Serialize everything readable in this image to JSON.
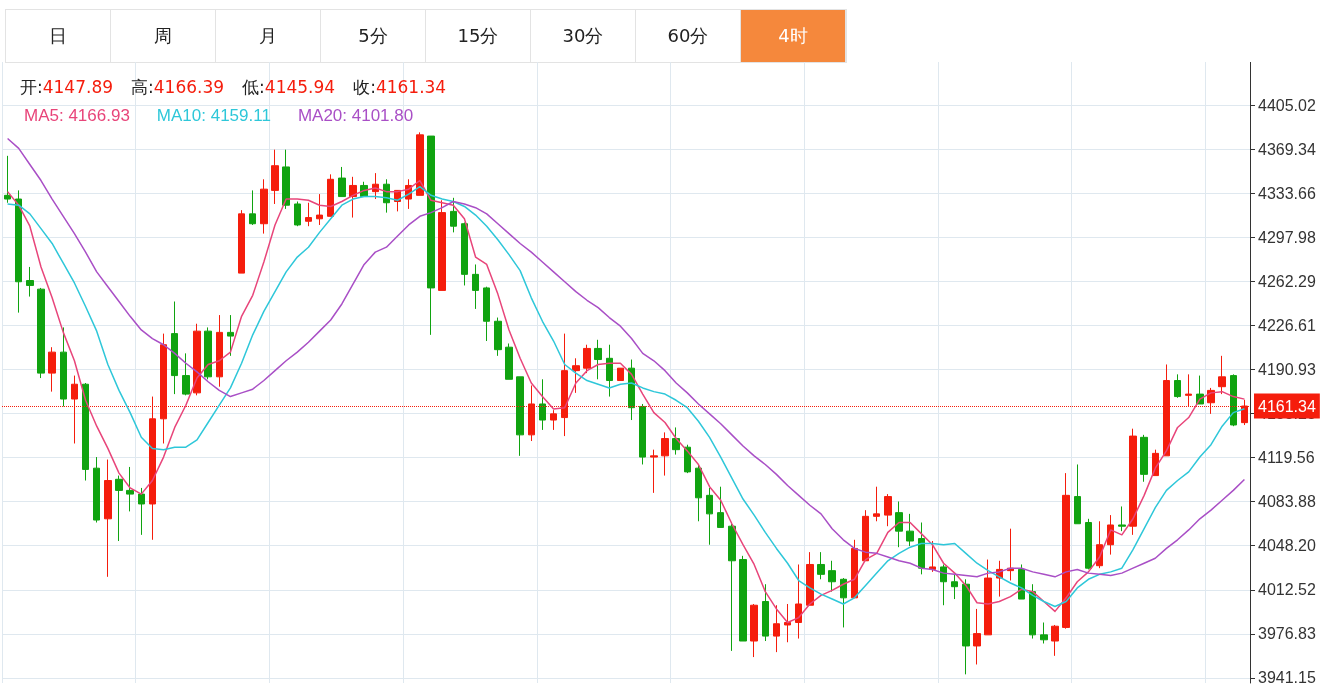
{
  "chart_data": {
    "type": "candlestick",
    "subtitle": "开:4147.89 高:4166.39 低:4145.94 收:4161.34",
    "annotations": [
      "日",
      "周",
      "月",
      "5分",
      "15分",
      "30分",
      "60分",
      "4时"
    ],
    "categories": [
      null,
      null,
      null,
      null,
      null,
      null,
      null,
      null,
      null,
      null,
      null,
      null,
      null,
      null,
      null,
      null,
      null,
      null,
      null,
      null,
      null,
      null,
      null,
      null,
      null,
      null,
      null,
      null,
      null,
      null,
      null,
      null,
      null,
      null,
      null,
      null,
      null,
      null,
      null,
      null,
      null,
      null,
      null,
      null,
      null,
      null,
      null,
      null,
      null,
      null,
      null,
      null,
      null,
      null,
      null,
      null,
      null,
      null,
      null,
      null,
      null,
      null,
      null,
      null,
      null,
      null,
      null,
      null,
      null,
      null,
      null,
      null,
      null,
      null,
      null,
      null,
      null,
      null,
      null,
      null,
      null,
      null,
      null,
      null,
      null,
      null,
      null,
      null,
      null,
      null,
      null,
      null,
      null,
      null,
      null,
      null,
      null,
      null,
      null,
      null,
      null,
      null,
      null,
      null,
      null,
      null,
      null,
      null,
      null,
      null,
      null,
      null
    ],
    "ohlc": [
      [
        4332,
        4364,
        4326,
        4329
      ],
      [
        4329,
        4336,
        4237,
        4262
      ],
      [
        4263,
        4274,
        4250,
        4259
      ],
      [
        4256,
        4257,
        4184,
        4188
      ],
      [
        4188,
        4209,
        4173,
        4205
      ],
      [
        4205,
        4225,
        4161,
        4167
      ],
      [
        4167,
        4186,
        4131,
        4179
      ],
      [
        4179,
        4180,
        4101,
        4110
      ],
      [
        4111,
        4120,
        4067,
        4069
      ],
      [
        4070,
        4118,
        4023,
        4101
      ],
      [
        4102,
        4105,
        4052,
        4093
      ],
      [
        4093,
        4112,
        4076,
        4090
      ],
      [
        4090,
        4095,
        4057,
        4082
      ],
      [
        4082,
        4169,
        4053,
        4151
      ],
      [
        4151,
        4220,
        4131,
        4211
      ],
      [
        4220,
        4246,
        4171,
        4186
      ],
      [
        4186,
        4204,
        4170,
        4171
      ],
      [
        4172,
        4228,
        4170,
        4222
      ],
      [
        4222,
        4225,
        4183,
        4185
      ],
      [
        4185,
        4235,
        4177,
        4221
      ],
      [
        4221,
        4235,
        4202,
        4218
      ],
      [
        4269,
        4320,
        4269,
        4317
      ],
      [
        4317,
        4336,
        4308,
        4309
      ],
      [
        4309,
        4345,
        4301,
        4337
      ],
      [
        4336,
        4369,
        4325,
        4356
      ],
      [
        4355,
        4369,
        4321,
        4324
      ],
      [
        4325,
        4327,
        4307,
        4308
      ],
      [
        4311,
        4326,
        4307,
        4314
      ],
      [
        4313,
        4333,
        4308,
        4316
      ],
      [
        4315,
        4349,
        4315,
        4345
      ],
      [
        4346,
        4355,
        4331,
        4331
      ],
      [
        4331,
        4347,
        4314,
        4340
      ],
      [
        4340,
        4343,
        4331,
        4331
      ],
      [
        4335,
        4350,
        4329,
        4341
      ],
      [
        4341,
        4345,
        4318,
        4326
      ],
      [
        4327,
        4336,
        4319,
        4336
      ],
      [
        4329,
        4345,
        4321,
        4340
      ],
      [
        4332,
        4383,
        4332,
        4381
      ],
      [
        4380,
        4380,
        4219,
        4257
      ],
      [
        4255,
        4328,
        4255,
        4318
      ],
      [
        4319,
        4330,
        4302,
        4307
      ],
      [
        4309,
        4310,
        4259,
        4268
      ],
      [
        4268,
        4276,
        4240,
        4255
      ],
      [
        4257,
        4258,
        4214,
        4230
      ],
      [
        4230,
        4233,
        4202,
        4207
      ],
      [
        4209,
        4212,
        4183,
        4183
      ],
      [
        4185,
        4185,
        4121,
        4138
      ],
      [
        4138,
        4178,
        4133,
        4163
      ],
      [
        4163,
        4183,
        4142,
        4150
      ],
      [
        4150,
        4158,
        4142,
        4155
      ],
      [
        4152,
        4220,
        4137,
        4190
      ],
      [
        4190,
        4200,
        4172,
        4194
      ],
      [
        4192,
        4211,
        4188,
        4208
      ],
      [
        4208,
        4215,
        4183,
        4199
      ],
      [
        4200,
        4211,
        4169,
        4182
      ],
      [
        4182,
        4192,
        4182,
        4192
      ],
      [
        4192,
        4199,
        4150,
        4160
      ],
      [
        4161,
        4163,
        4114,
        4120
      ],
      [
        4120,
        4126,
        4091,
        4121
      ],
      [
        4121,
        4140,
        4105,
        4135
      ],
      [
        4135,
        4144,
        4122,
        4126
      ],
      [
        4128,
        4130,
        4107,
        4108
      ],
      [
        4111,
        4114,
        4068,
        4087
      ],
      [
        4089,
        4095,
        4049,
        4074
      ],
      [
        4075,
        4096,
        4063,
        4063
      ],
      [
        4064,
        4066,
        3963,
        4036
      ],
      [
        4037,
        4040,
        3971,
        3971
      ],
      [
        3971,
        4001,
        3958,
        4000
      ],
      [
        4003,
        4017,
        3971,
        3975
      ],
      [
        3975,
        4000,
        3962,
        3985
      ],
      [
        3984,
        4001,
        3970,
        3986
      ],
      [
        3986,
        4033,
        3973,
        4001
      ],
      [
        4000,
        4043,
        4000,
        4033
      ],
      [
        4033,
        4043,
        4021,
        4025
      ],
      [
        4028,
        4036,
        4011,
        4019
      ],
      [
        4021,
        4022,
        3982,
        4006
      ],
      [
        4006,
        4053,
        4006,
        4046
      ],
      [
        4036,
        4077,
        4036,
        4072
      ],
      [
        4072,
        4096,
        4068,
        4074
      ],
      [
        4073,
        4090,
        4064,
        4088
      ],
      [
        4075,
        4084,
        4047,
        4060
      ],
      [
        4060,
        4074,
        4048,
        4052
      ],
      [
        4054,
        4067,
        4025,
        4030
      ],
      [
        4029,
        4052,
        4027,
        4031
      ],
      [
        4031,
        4033,
        4000,
        4019
      ],
      [
        4019,
        4025,
        4005,
        4015
      ],
      [
        4017,
        4021,
        3944,
        3967
      ],
      [
        3967,
        3997,
        3952,
        3977
      ],
      [
        3976,
        4037,
        3976,
        4022
      ],
      [
        4022,
        4036,
        4007,
        4029
      ],
      [
        4028,
        4062,
        4020,
        4030
      ],
      [
        4029,
        4033,
        4005,
        4005
      ],
      [
        4011,
        4017,
        3973,
        3976
      ],
      [
        3976,
        3986,
        3969,
        3972
      ],
      [
        3971,
        3984,
        3959,
        3983
      ],
      [
        3982,
        4107,
        3981,
        4089
      ],
      [
        4088,
        4114,
        4066,
        4066
      ],
      [
        4067,
        4070,
        4029,
        4030
      ],
      [
        4032,
        4068,
        4030,
        4049
      ],
      [
        4049,
        4073,
        4041,
        4065
      ],
      [
        4065,
        4080,
        4060,
        4064
      ],
      [
        4064,
        4143,
        4057,
        4137
      ],
      [
        4136,
        4138,
        4100,
        4106
      ],
      [
        4105,
        4126,
        4105,
        4123
      ],
      [
        4121,
        4195,
        4121,
        4182
      ],
      [
        4182,
        4187,
        4168,
        4169
      ],
      [
        4170,
        4187,
        4161,
        4171
      ],
      [
        4171,
        4186,
        4163,
        4163
      ],
      [
        4164,
        4176,
        4155,
        4174
      ],
      [
        4177,
        4202,
        4171,
        4185
      ],
      [
        4186,
        4187,
        4145,
        4146
      ],
      [
        4147.89,
        4166.39,
        4145.94,
        4161.34
      ]
    ],
    "colors": [
      "#10a310",
      "#10a310",
      "#10a310",
      "#10a310",
      "#f51d0c",
      "#10a310",
      "#f51d0c",
      "#10a310",
      "#10a310",
      "#f51d0c",
      "#10a310",
      "#10a310",
      "#10a310",
      "#f51d0c",
      "#f51d0c",
      "#10a310",
      "#10a310",
      "#f51d0c",
      "#10a310",
      "#f51d0c",
      "#10a310",
      "#f51d0c",
      "#10a310",
      "#f51d0c",
      "#f51d0c",
      "#10a310",
      "#10a310",
      "#f51d0c",
      "#f51d0c",
      "#f51d0c",
      "#10a310",
      "#f51d0c",
      "#10a310",
      "#f51d0c",
      "#10a310",
      "#f51d0c",
      "#f51d0c",
      "#f51d0c",
      "#10a310",
      "#f51d0c",
      "#10a310",
      "#10a310",
      "#10a310",
      "#10a310",
      "#10a310",
      "#10a310",
      "#10a310",
      "#f51d0c",
      "#10a310",
      "#f51d0c",
      "#f51d0c",
      "#f51d0c",
      "#f51d0c",
      "#10a310",
      "#10a310",
      "#f51d0c",
      "#10a310",
      "#10a310",
      "#f51d0c",
      "#f51d0c",
      "#10a310",
      "#10a310",
      "#10a310",
      "#10a310",
      "#10a310",
      "#10a310",
      "#10a310",
      "#f51d0c",
      "#10a310",
      "#f51d0c",
      "#f51d0c",
      "#f51d0c",
      "#f51d0c",
      "#10a310",
      "#10a310",
      "#10a310",
      "#f51d0c",
      "#f51d0c",
      "#f51d0c",
      "#f51d0c",
      "#10a310",
      "#10a310",
      "#10a310",
      "#f51d0c",
      "#10a310",
      "#10a310",
      "#10a310",
      "#f51d0c",
      "#f51d0c",
      "#f51d0c",
      "#f51d0c",
      "#10a310",
      "#10a310",
      "#10a310",
      "#f51d0c",
      "#f51d0c",
      "#10a310",
      "#10a310",
      "#f51d0c",
      "#f51d0c",
      "#10a310",
      "#f51d0c",
      "#10a310",
      "#f51d0c",
      "#f51d0c",
      "#10a310",
      "#f51d0c",
      "#10a310",
      "#f51d0c",
      "#f51d0c",
      "#10a310",
      "#f51d0c"
    ],
    "series": [
      {
        "name": "MA5: 4166.93",
        "type": "line",
        "color": "#e8457a",
        "values": [
          4335,
          4324,
          4307,
          4274,
          4249,
          4221,
          4198,
          4166,
          4145,
          4127,
          4107,
          4095,
          4090,
          4101,
          4120,
          4144,
          4162,
          4184,
          4195,
          4198,
          4205,
          4234,
          4251,
          4278,
          4308,
          4329,
          4329,
          4328,
          4324,
          4323,
          4327,
          4332,
          4336,
          4338,
          4335,
          4335,
          4337,
          4344,
          4328,
          4326,
          4324,
          4313,
          4282,
          4276,
          4252,
          4223,
          4200,
          4180,
          4169,
          4159,
          4160,
          4180,
          4190,
          4195,
          4196,
          4196,
          4187,
          4171,
          4156,
          4148,
          4135,
          4125,
          4114,
          4096,
          4085,
          4066,
          4049,
          4033,
          4011,
          3997,
          3986,
          3990,
          4001,
          4008,
          4012,
          4017,
          4021,
          4037,
          4042,
          4059,
          4067,
          4067,
          4058,
          4049,
          4034,
          4026,
          4016,
          4002,
          4001,
          4003,
          4007,
          4013,
          4011,
          4003,
          3995,
          4006,
          4019,
          4027,
          4039,
          4061,
          4057,
          4070,
          4089,
          4111,
          4125,
          4144,
          4152,
          4167,
          4172,
          4173,
          4169,
          4166.93
        ]
      },
      {
        "name": "MA10: 4159.11",
        "type": "line",
        "color": "#2ec7d9",
        "values": [
          4325,
          4324,
          4317,
          4305,
          4293,
          4277,
          4261,
          4242,
          4222,
          4195,
          4174,
          4156,
          4136,
          4127,
          4126,
          4128,
          4128,
          4134,
          4148,
          4162,
          4176,
          4196,
          4219,
          4238,
          4254,
          4270,
          4282,
          4290,
          4302,
          4313,
          4324,
          4329,
          4331,
          4331,
          4330,
          4328,
          4333,
          4339,
          4332,
          4329,
          4327,
          4323,
          4316,
          4307,
          4296,
          4284,
          4271,
          4249,
          4230,
          4214,
          4195,
          4188,
          4182,
          4179,
          4176,
          4179,
          4180,
          4176,
          4173,
          4171,
          4166,
          4160,
          4149,
          4136,
          4120,
          4103,
          4086,
          4073,
          4059,
          4046,
          4034,
          4020,
          4014,
          4009,
          4005,
          4001,
          4006,
          4016,
          4026,
          4036,
          4042,
          4047,
          4050,
          4050,
          4049,
          4050,
          4042,
          4034,
          4028,
          4023,
          4018,
          4014,
          4008,
          4003,
          3999,
          4003,
          4014,
          4021,
          4025,
          4027,
          4030,
          4045,
          4062,
          4079,
          4093,
          4101,
          4108,
          4120,
          4130,
          4145,
          4156,
          4159.11
        ]
      },
      {
        "name": "MA20: 4101.80",
        "type": "line",
        "color": "#a94fc6",
        "values": [
          4378,
          4370,
          4357,
          4344,
          4329,
          4315,
          4301,
          4286,
          4270,
          4258,
          4246,
          4234,
          4223,
          4216,
          4211,
          4204,
          4196,
          4189,
          4181,
          4174,
          4169,
          4172,
          4175,
          4182,
          4190,
          4198,
          4205,
          4213,
          4222,
          4231,
          4244,
          4260,
          4276,
          4286,
          4290,
          4299,
          4308,
          4315,
          4318,
          4322,
          4327,
          4325,
          4322,
          4317,
          4309,
          4301,
          4293,
          4286,
          4278,
          4270,
          4262,
          4254,
          4247,
          4241,
          4233,
          4226,
          4216,
          4204,
          4198,
          4190,
          4180,
          4172,
          4163,
          4155,
          4147,
          4138,
          4129,
          4121,
          4114,
          4106,
          4097,
          4089,
          4081,
          4074,
          4062,
          4053,
          4046,
          4043,
          4042,
          4039,
          4036,
          4034,
          4030,
          4029,
          4026,
          4025,
          4024,
          4023,
          4026,
          4027,
          4030,
          4030,
          4027,
          4025,
          4023,
          4027,
          4029,
          4026,
          4025,
          4024,
          4026,
          4030,
          4034,
          4038,
          4046,
          4053,
          4061,
          4070,
          4077,
          4085,
          4093,
          4101.8
        ]
      }
    ],
    "ylim": [
      3937,
      4440
    ],
    "yticks": [
      3941.15,
      3976.83,
      4012.52,
      {
        "value": 4048.2,
        "label": "4048.20"
      },
      4083.88,
      4119.56,
      4155.25,
      4190.93,
      4226.61,
      4262.29,
      4297.98,
      4333.66,
      4369.34,
      4405.02
    ],
    "tick_labels": "y",
    "grid": true,
    "legend": "top left",
    "marker": "none",
    "ref_lines": [
      {
        "axis": "y",
        "value": 4161.34,
        "label": "4161.34",
        "color": "#f51d0c",
        "line_style": "dotted"
      }
    ]
  }
}
